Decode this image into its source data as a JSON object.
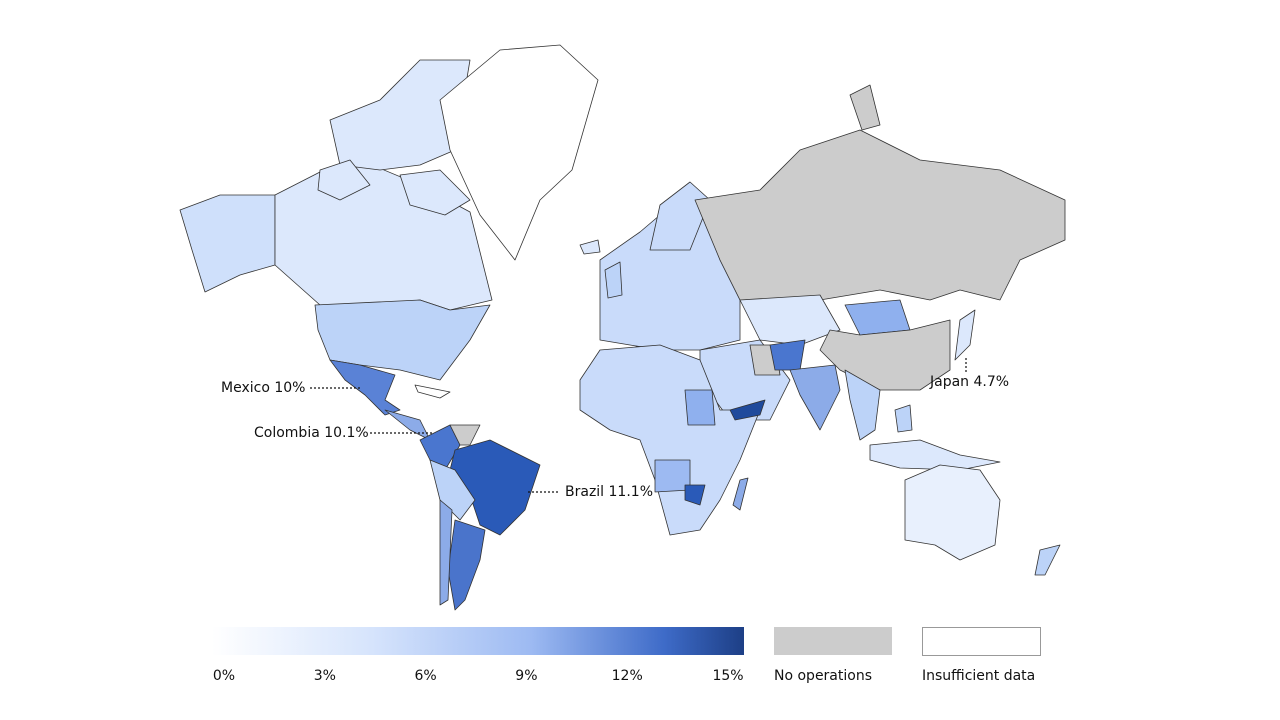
{
  "map": {
    "annotations": [
      {
        "label": "Mexico 10%"
      },
      {
        "label": "Colombia 10.1%"
      },
      {
        "label": "Brazil 11.1%"
      },
      {
        "label": "Japan 4.7%"
      }
    ],
    "legend": {
      "scale_labels": [
        "0%",
        "3%",
        "6%",
        "9%",
        "12%",
        "15%"
      ],
      "no_operations": "No operations",
      "insufficient_data": "Insufficient data"
    }
  }
}
